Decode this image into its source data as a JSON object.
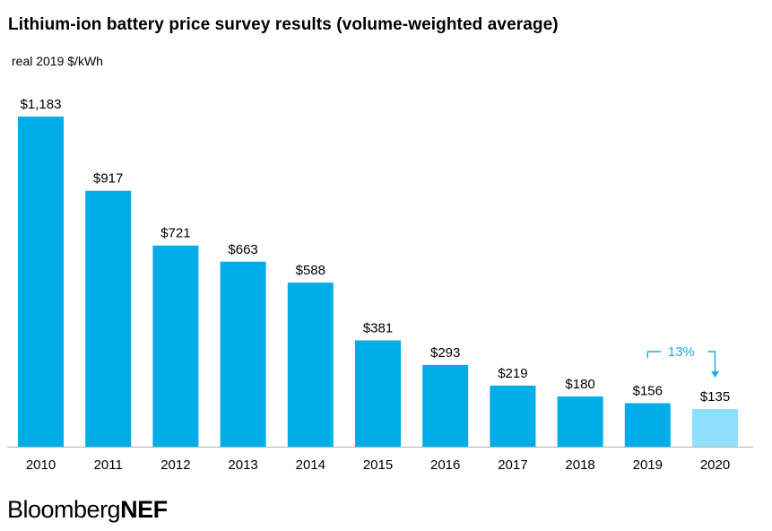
{
  "chart_data": {
    "type": "bar",
    "title": "Lithium-ion battery price survey results (volume-weighted average)",
    "ylabel": "real 2019 $/kWh",
    "xlabel": "",
    "categories": [
      "2010",
      "2011",
      "2012",
      "2013",
      "2014",
      "2015",
      "2016",
      "2017",
      "2018",
      "2019",
      "2020"
    ],
    "values": [
      1183,
      917,
      721,
      663,
      588,
      381,
      293,
      219,
      180,
      156,
      135
    ],
    "data_labels": [
      "$1,183",
      "$917",
      "$721",
      "$663",
      "$588",
      "$381",
      "$293",
      "$219",
      "$180",
      "$156",
      "$135"
    ],
    "ylim": [
      0,
      1183
    ],
    "grid": false,
    "annotation": {
      "text": "13%",
      "from_category": "2019",
      "to_category": "2020"
    },
    "colors": {
      "bar": "#00ade8",
      "highlight_bar": "#8fe0fb",
      "annotation": "#1aaee2",
      "axis": "#b3b3b3"
    },
    "highlight_category": "2020"
  },
  "brand": {
    "part1": "Bloomberg",
    "part2": "NEF"
  }
}
